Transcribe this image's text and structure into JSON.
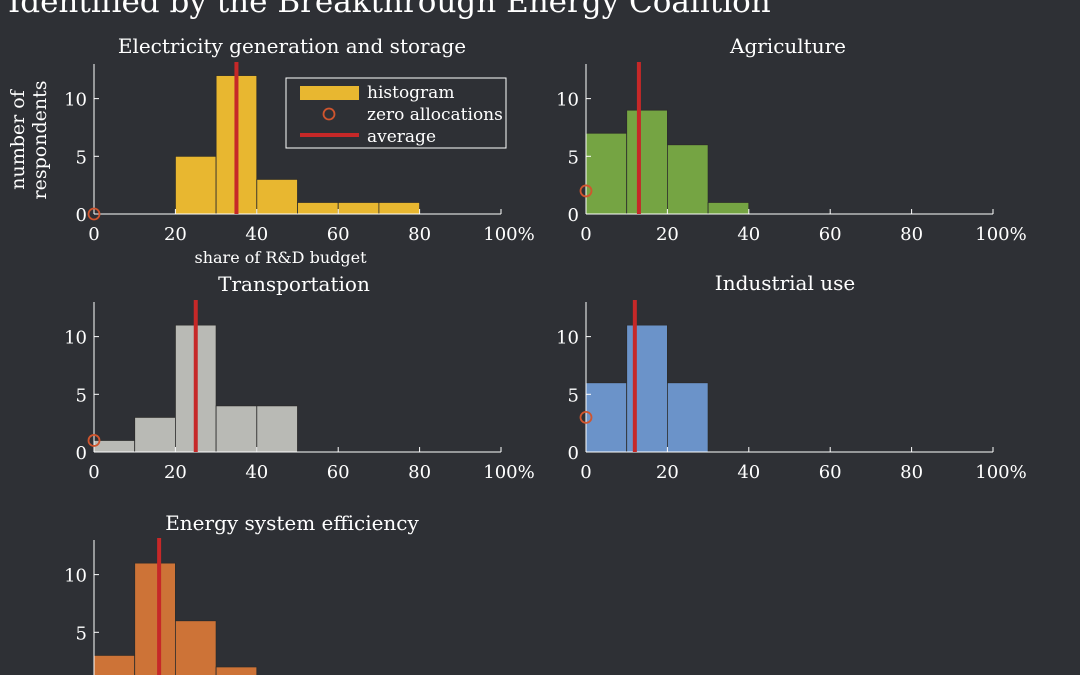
{
  "figure_title": "Identified by the Breakthrough Energy Coalition",
  "legend": {
    "histogram": "histogram",
    "zero": "zero allocations",
    "average": "average"
  },
  "colors": {
    "background": "#2e3035",
    "axis": "#ffffff",
    "zero_marker": "#d0552e",
    "average_line": "#c62828",
    "electricity": "#e8b730",
    "agriculture": "#75a443",
    "transportation": "#b9bab5",
    "industrial": "#6b93c9",
    "efficiency": "#cd7337"
  },
  "chart_data": [
    {
      "type": "bar",
      "title": "Electricity generation and storage",
      "xlabel": "share of R&D budget",
      "ylabel": "number of respondents",
      "color_key": "electricity",
      "bins": [
        [
          20,
          30
        ],
        [
          30,
          40
        ],
        [
          40,
          50
        ],
        [
          50,
          60
        ],
        [
          60,
          70
        ],
        [
          70,
          80
        ]
      ],
      "values": [
        5,
        12,
        3,
        1,
        1,
        1
      ],
      "zero_allocations": 0,
      "average": 35,
      "xlim": [
        0,
        100
      ],
      "ylim": [
        0,
        13
      ],
      "xticks": [
        "0",
        "20",
        "40",
        "60",
        "80",
        "100%"
      ],
      "yticks": [
        "0",
        "5",
        "10"
      ],
      "legend_position": "top-right"
    },
    {
      "type": "bar",
      "title": "Agriculture",
      "color_key": "agriculture",
      "bins": [
        [
          0,
          10
        ],
        [
          10,
          20
        ],
        [
          20,
          30
        ],
        [
          30,
          40
        ]
      ],
      "values": [
        7,
        9,
        6,
        1
      ],
      "zero_allocations": 2,
      "average": 13,
      "xlim": [
        0,
        100
      ],
      "ylim": [
        0,
        13
      ],
      "xticks": [
        "0",
        "20",
        "40",
        "60",
        "80",
        "100%"
      ],
      "yticks": [
        "0",
        "5",
        "10"
      ]
    },
    {
      "type": "bar",
      "title": "Transportation",
      "color_key": "transportation",
      "bins": [
        [
          0,
          10
        ],
        [
          10,
          20
        ],
        [
          20,
          30
        ],
        [
          30,
          40
        ],
        [
          40,
          50
        ]
      ],
      "values": [
        1,
        3,
        11,
        4,
        4
      ],
      "zero_allocations": 1,
      "average": 25,
      "xlim": [
        0,
        100
      ],
      "ylim": [
        0,
        13
      ],
      "xticks": [
        "0",
        "20",
        "40",
        "60",
        "80",
        "100%"
      ],
      "yticks": [
        "0",
        "5",
        "10"
      ]
    },
    {
      "type": "bar",
      "title": "Industrial use",
      "color_key": "industrial",
      "bins": [
        [
          0,
          10
        ],
        [
          10,
          20
        ],
        [
          20,
          30
        ]
      ],
      "values": [
        6,
        11,
        6
      ],
      "zero_allocations": 3,
      "average": 12,
      "xlim": [
        0,
        100
      ],
      "ylim": [
        0,
        13
      ],
      "xticks": [
        "0",
        "20",
        "40",
        "60",
        "80",
        "100%"
      ],
      "yticks": [
        "0",
        "5",
        "10"
      ]
    },
    {
      "type": "bar",
      "title": "Energy system efficiency",
      "color_key": "efficiency",
      "bins": [
        [
          0,
          10
        ],
        [
          10,
          20
        ],
        [
          20,
          30
        ],
        [
          30,
          40
        ]
      ],
      "values": [
        3,
        11,
        6,
        2
      ],
      "zero_allocations": null,
      "average": 16,
      "xlim": [
        0,
        100
      ],
      "ylim": [
        0,
        13
      ],
      "yticks": [
        "5",
        "10"
      ]
    }
  ]
}
